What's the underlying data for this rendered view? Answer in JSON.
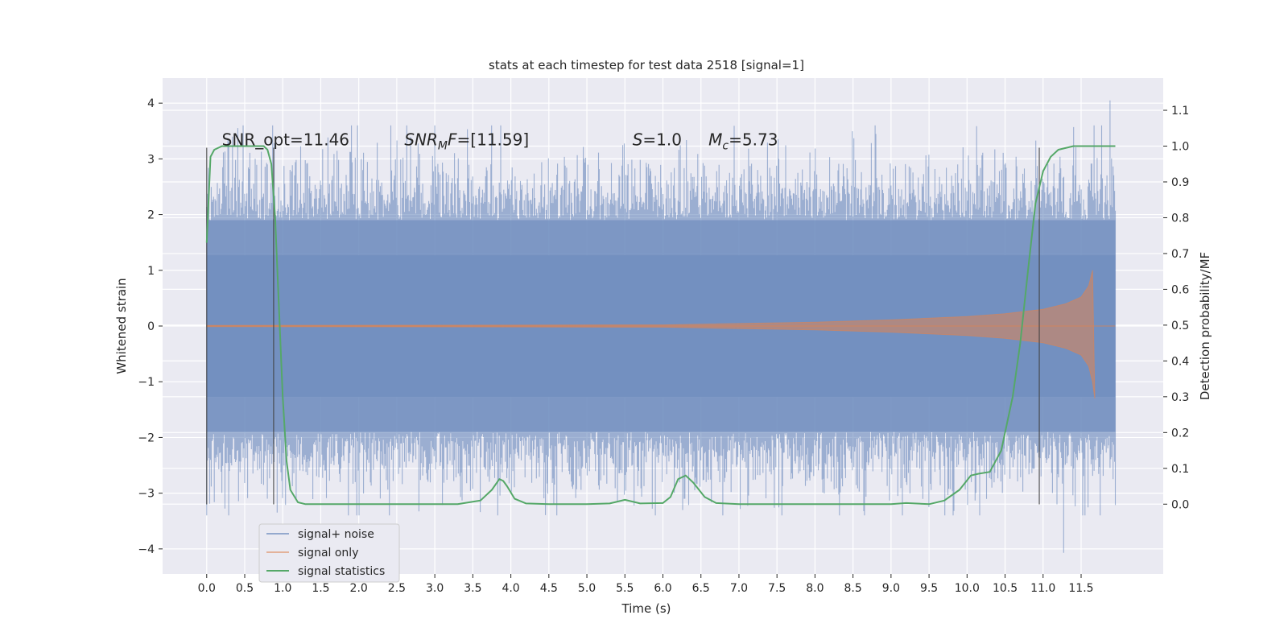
{
  "chart_data": {
    "type": "line",
    "title": "stats at each timestep for test data 2518 [signal=1]",
    "xlabel": "Time (s)",
    "ylabel_left": "Whitened strain",
    "ylabel_right": "Detection probability/MF",
    "xlim": [
      -0.58,
      12.58
    ],
    "ylim_left": [
      -4.45,
      4.45
    ],
    "ylim_right": [
      -0.195,
      1.19
    ],
    "x_ticks": [
      0.0,
      0.5,
      1.0,
      1.5,
      2.0,
      2.5,
      3.0,
      3.5,
      4.0,
      4.5,
      5.0,
      5.5,
      6.0,
      6.5,
      7.0,
      7.5,
      8.0,
      8.5,
      9.0,
      9.5,
      10.0,
      10.5,
      11.0,
      11.5
    ],
    "x_tick_labels": [
      "0.0",
      "0.5",
      "1.0",
      "1.5",
      "2.0",
      "2.5",
      "3.0",
      "3.5",
      "4.0",
      "4.5",
      "5.0",
      "5.5",
      "6.0",
      "6.5",
      "7.0",
      "7.5",
      "8.0",
      "8.5",
      "9.0",
      "9.5",
      "10.0",
      "10.5",
      "11.0",
      "11.5"
    ],
    "y_left_ticks": [
      -4,
      -3,
      -2,
      -1,
      0,
      1,
      2,
      3,
      4
    ],
    "y_left_tick_labels": [
      "−4",
      "−3",
      "−2",
      "−1",
      "0",
      "1",
      "2",
      "3",
      "4"
    ],
    "y_right_ticks": [
      0.0,
      0.1,
      0.2,
      0.3,
      0.4,
      0.5,
      0.6,
      0.7,
      0.8,
      0.9,
      1.0,
      1.1
    ],
    "y_right_tick_labels": [
      "0.0",
      "0.1",
      "0.2",
      "0.3",
      "0.4",
      "0.5",
      "0.6",
      "0.7",
      "0.8",
      "0.9",
      "1.0",
      "1.1"
    ],
    "grid": true,
    "legend_position": "lower-left",
    "series": [
      {
        "name": "signal+ noise",
        "color": "#4c72b0",
        "axis": "left",
        "t_range": [
          0.0,
          11.95
        ],
        "envelope_core": [
          -1.27,
          1.27
        ],
        "envelope_typical": [
          -1.9,
          1.9
        ],
        "extremes": {
          "max": 4.05,
          "min": -4.07,
          "t_max": 11.88,
          "t_min": 11.27
        }
      },
      {
        "name": "signal only",
        "color": "#dd8452",
        "axis": "left",
        "envelope_amplitude": [
          [
            0.0,
            0.01
          ],
          [
            6.0,
            0.02
          ],
          [
            8.0,
            0.07
          ],
          [
            9.0,
            0.11
          ],
          [
            10.0,
            0.17
          ],
          [
            10.5,
            0.22
          ],
          [
            11.0,
            0.3
          ],
          [
            11.3,
            0.4
          ],
          [
            11.5,
            0.52
          ],
          [
            11.6,
            0.72
          ],
          [
            11.65,
            1.0
          ],
          [
            11.68,
            -1.3
          ]
        ]
      },
      {
        "name": "signal statistics",
        "color": "#55a868",
        "axis": "right",
        "x": [
          0.0,
          0.05,
          0.1,
          0.2,
          0.3,
          0.5,
          0.65,
          0.75,
          0.8,
          0.85,
          0.9,
          0.95,
          1.0,
          1.05,
          1.1,
          1.2,
          1.3,
          1.5,
          2.0,
          2.5,
          3.0,
          3.3,
          3.6,
          3.75,
          3.85,
          3.9,
          3.95,
          4.05,
          4.2,
          4.5,
          5.0,
          5.3,
          5.5,
          5.7,
          6.0,
          6.1,
          6.2,
          6.3,
          6.4,
          6.55,
          6.7,
          7.0,
          7.5,
          8.0,
          8.5,
          9.0,
          9.2,
          9.5,
          9.7,
          9.9,
          10.05,
          10.15,
          10.3,
          10.45,
          10.6,
          10.7,
          10.8,
          10.9,
          11.0,
          11.1,
          11.2,
          11.4,
          11.6,
          11.8,
          11.95
        ],
        "y": [
          0.73,
          0.97,
          0.99,
          1.0,
          1.0,
          1.0,
          1.0,
          1.0,
          0.99,
          0.95,
          0.8,
          0.55,
          0.3,
          0.12,
          0.04,
          0.005,
          0.0,
          0.0,
          0.0,
          0.0,
          0.0,
          0.0,
          0.01,
          0.04,
          0.07,
          0.065,
          0.05,
          0.015,
          0.002,
          0.0,
          0.0,
          0.002,
          0.012,
          0.002,
          0.003,
          0.02,
          0.07,
          0.08,
          0.06,
          0.02,
          0.003,
          0.0,
          0.0,
          0.0,
          0.0,
          0.0,
          0.003,
          0.0,
          0.01,
          0.04,
          0.08,
          0.085,
          0.09,
          0.15,
          0.3,
          0.45,
          0.65,
          0.84,
          0.93,
          0.97,
          0.99,
          1.0,
          1.0,
          1.0,
          1.0
        ]
      }
    ],
    "annotations": [
      {
        "label": "SNR_opt=11.46",
        "x": 0.2,
        "y_right": 1.0
      },
      {
        "label": "SNR",
        "sub": "M",
        "suffix": "F=[11.59]",
        "italic": true,
        "x": 2.6,
        "y_right": 1.0
      },
      {
        "label": "S",
        "suffix": "=1.0",
        "italic": true,
        "x": 5.6,
        "y_right": 1.0
      },
      {
        "label": "M",
        "sub": "c",
        "suffix": "=5.73",
        "italic": true,
        "x": 6.6,
        "y_right": 1.0
      }
    ],
    "vertical_markers": [
      0.0,
      0.88,
      10.95
    ],
    "marker_range": [
      -3.2,
      3.2
    ]
  }
}
